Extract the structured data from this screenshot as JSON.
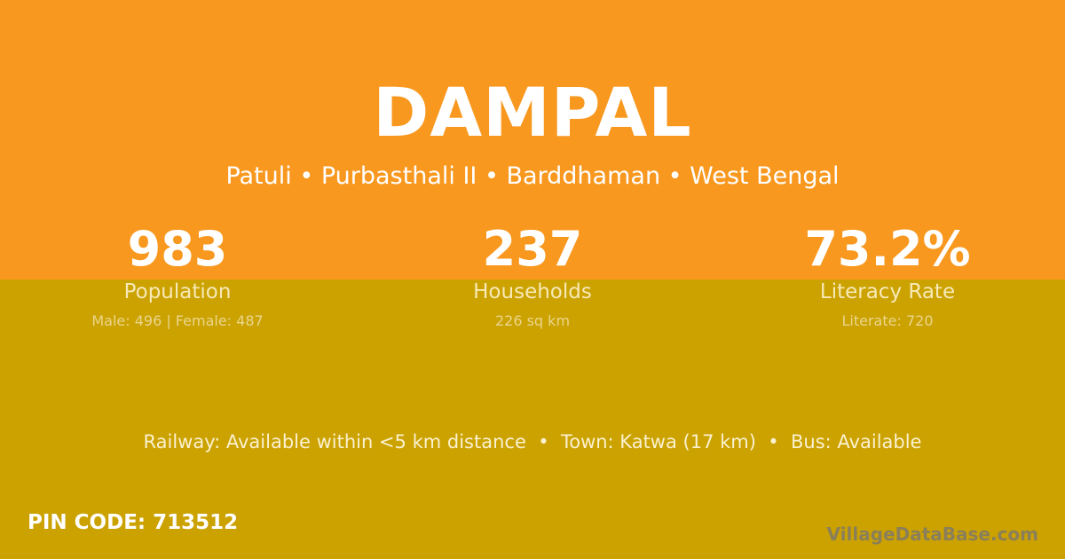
{
  "colors": {
    "top_background": "#f8981f",
    "bottom_background": "#cba200"
  },
  "title": "DAMPAL",
  "location": "Patuli • Purbasthali II • Barddhaman • West Bengal",
  "stats": [
    {
      "value": "983",
      "label": "Population",
      "detail": "Male: 496 | Female: 487"
    },
    {
      "value": "237",
      "label": "Households",
      "detail": "226 sq km"
    },
    {
      "value": "73.2%",
      "label": "Literacy Rate",
      "detail": "Literate: 720"
    }
  ],
  "connectivity": "Railway: Available within <5 km distance  •  Town: Katwa (17 km)  •  Bus: Available",
  "pin_code": "PIN CODE: 713512",
  "brand": "VillageDataBase.com"
}
